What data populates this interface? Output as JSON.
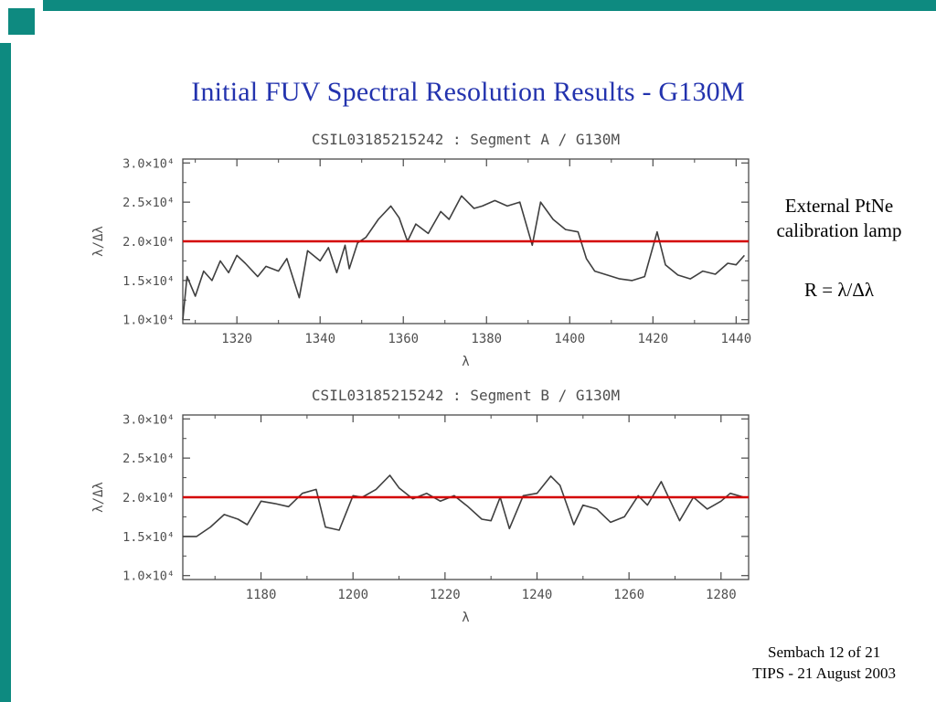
{
  "slide": {
    "title": "Initial FUV Spectral Resolution Results - G130M",
    "title_color": "#2333ae",
    "accent_color": "#0e8a80",
    "annotation": {
      "line1": "External PtNe",
      "line2": "calibration lamp",
      "formula": "R = λ/Δλ"
    },
    "footer": {
      "line1": "Sembach 12 of 21",
      "line2": "TIPS - 21 August 2003"
    }
  },
  "chart_style": {
    "axis_color": "#4a4a4a",
    "text_color": "#4f4f4f",
    "line_color": "#3f3f3f",
    "ref_line_color": "#d40000"
  },
  "chart_data": [
    {
      "type": "line",
      "title": "CSIL03185215242 : Segment A / G130M",
      "xlabel": "λ",
      "ylabel": "λ/Δλ",
      "xlim": [
        1307,
        1443
      ],
      "ylim": [
        9500,
        30500
      ],
      "xticks": [
        1320,
        1340,
        1360,
        1380,
        1400,
        1420,
        1440
      ],
      "yticks": [
        10000,
        15000,
        20000,
        25000,
        30000
      ],
      "ytick_labels": [
        "1.0×10⁴",
        "1.5×10⁴",
        "2.0×10⁴",
        "2.5×10⁴",
        "3.0×10⁴"
      ],
      "ref_line": 20000,
      "legend": "none",
      "grid": false,
      "x": [
        1307,
        1308,
        1310,
        1312,
        1314,
        1316,
        1318,
        1320,
        1322,
        1325,
        1327,
        1330,
        1332,
        1335,
        1337,
        1340,
        1342,
        1344,
        1346,
        1347,
        1349,
        1351,
        1354,
        1357,
        1359,
        1361,
        1363,
        1366,
        1369,
        1371,
        1374,
        1377,
        1379,
        1382,
        1385,
        1388,
        1391,
        1393,
        1396,
        1399,
        1402,
        1404,
        1406,
        1409,
        1412,
        1415,
        1418,
        1421,
        1423,
        1426,
        1429,
        1432,
        1435,
        1438,
        1440,
        1442
      ],
      "y": [
        10000,
        15500,
        13000,
        16200,
        15000,
        17500,
        16000,
        18200,
        17200,
        15500,
        16800,
        16200,
        17800,
        12800,
        18800,
        17500,
        19200,
        16000,
        19500,
        16500,
        19800,
        20500,
        22800,
        24500,
        23000,
        20000,
        22200,
        21000,
        23800,
        22800,
        25800,
        24200,
        24500,
        25200,
        24500,
        25000,
        19500,
        25000,
        22800,
        21500,
        21200,
        17800,
        16200,
        15700,
        15200,
        15000,
        15500,
        21200,
        17000,
        15700,
        15200,
        16200,
        15800,
        17200,
        17000,
        18200
      ]
    },
    {
      "type": "line",
      "title": "CSIL03185215242 : Segment B / G130M",
      "xlabel": "λ",
      "ylabel": "λ/Δλ",
      "xlim": [
        1163,
        1286
      ],
      "ylim": [
        9500,
        30500
      ],
      "xticks": [
        1180,
        1200,
        1220,
        1240,
        1260,
        1280
      ],
      "yticks": [
        10000,
        15000,
        20000,
        25000,
        30000
      ],
      "ytick_labels": [
        "1.0×10⁴",
        "1.5×10⁴",
        "2.0×10⁴",
        "2.5×10⁴",
        "3.0×10⁴"
      ],
      "ref_line": 20000,
      "legend": "none",
      "grid": false,
      "x": [
        1163,
        1166,
        1169,
        1172,
        1175,
        1177,
        1180,
        1183,
        1186,
        1189,
        1192,
        1194,
        1197,
        1200,
        1202,
        1205,
        1208,
        1210,
        1213,
        1216,
        1219,
        1222,
        1225,
        1228,
        1230,
        1232,
        1234,
        1237,
        1240,
        1243,
        1245,
        1248,
        1250,
        1253,
        1256,
        1259,
        1262,
        1264,
        1267,
        1269,
        1271,
        1274,
        1277,
        1280,
        1282,
        1285
      ],
      "y": [
        15000,
        15000,
        16200,
        17800,
        17200,
        16500,
        19500,
        19200,
        18800,
        20500,
        21000,
        16200,
        15800,
        20200,
        20000,
        21000,
        22800,
        21200,
        19800,
        20500,
        19500,
        20200,
        18800,
        17200,
        17000,
        20000,
        16000,
        20200,
        20500,
        22700,
        21500,
        16500,
        19000,
        18500,
        16800,
        17500,
        20200,
        19000,
        22000,
        19500,
        17000,
        20000,
        18500,
        19500,
        20500,
        20000
      ]
    }
  ]
}
